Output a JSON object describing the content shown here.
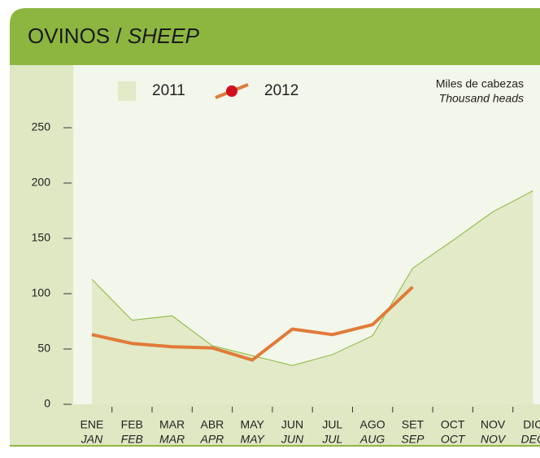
{
  "chart_data": {
    "type": "line",
    "title": "OVINOS /",
    "title_en": "SHEEP",
    "unit_label": "Miles de cabezas",
    "unit_label_en": "Thousand heads",
    "categories": [
      "ENE",
      "FEB",
      "MAR",
      "ABR",
      "MAY",
      "JUN",
      "JUL",
      "AGO",
      "SET",
      "OCT",
      "NOV",
      "DIC"
    ],
    "categories_en": [
      "JAN",
      "FEB",
      "MAR",
      "APR",
      "MAY",
      "JUN",
      "JUL",
      "AUG",
      "SEP",
      "OCT",
      "NOV",
      "DEC"
    ],
    "series": [
      {
        "name": "2011",
        "style": "area",
        "color": "#8ab83c",
        "fill": "#e2eac8",
        "values": [
          113,
          76,
          80,
          53,
          44,
          35,
          45,
          62,
          123,
          148,
          174,
          193
        ]
      },
      {
        "name": "2012",
        "style": "line",
        "color": "#e07b3a",
        "marker": "#d0101e",
        "values": [
          63,
          55,
          52,
          51,
          40,
          68,
          63,
          72,
          106,
          null,
          null,
          null
        ]
      }
    ],
    "ylim": [
      0,
      250
    ],
    "yticks": [
      0,
      50,
      100,
      150,
      200,
      250
    ]
  }
}
